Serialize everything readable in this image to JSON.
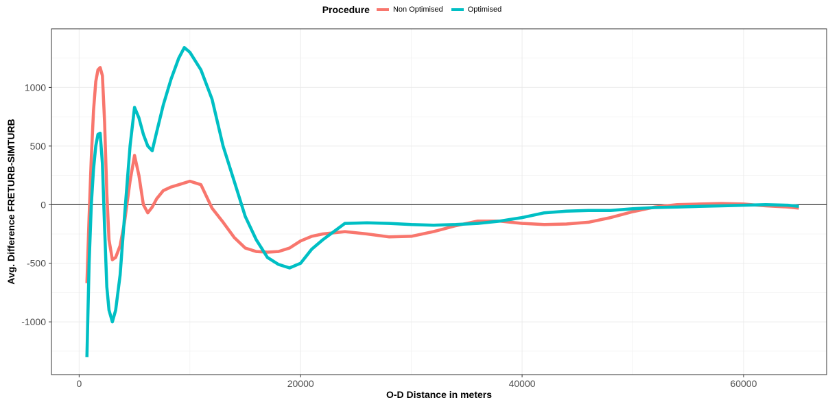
{
  "chart_data": {
    "type": "line",
    "title": "",
    "xlabel": "O-D Distance in meters",
    "ylabel": "Avg. Difference FRETURB-SIMTURB",
    "xlim": [
      -2500,
      67500
    ],
    "ylim": [
      -1450,
      1500
    ],
    "x_ticks": [
      0,
      20000,
      40000,
      60000
    ],
    "x_tick_labels": [
      "0",
      "20000",
      "40000",
      "60000"
    ],
    "y_ticks": [
      1000,
      500,
      0,
      -500,
      -1000
    ],
    "y_tick_labels": [
      "1000",
      "500",
      "0",
      "-500",
      "-1000"
    ],
    "reference_line_y": 0,
    "grid": true,
    "legend": {
      "title": "Procedure",
      "position": "top"
    },
    "series": [
      {
        "name": "Non Optimised",
        "color": "#F8766D",
        "x": [
          700,
          900,
          1100,
          1300,
          1500,
          1700,
          1900,
          2100,
          2300,
          2500,
          2700,
          3000,
          3300,
          3700,
          4100,
          4600,
          5000,
          5400,
          5800,
          6200,
          6600,
          7000,
          7600,
          8300,
          9000,
          10000,
          11000,
          12000,
          13000,
          14000,
          15000,
          16000,
          17000,
          18000,
          19000,
          20000,
          21000,
          22000,
          24000,
          26000,
          28000,
          30000,
          32000,
          34000,
          36000,
          38000,
          40000,
          42000,
          44000,
          46000,
          48000,
          50000,
          52000,
          54000,
          56000,
          58000,
          60000,
          62000,
          64000,
          65000
        ],
        "values": [
          -670,
          -100,
          400,
          800,
          1050,
          1150,
          1170,
          1100,
          700,
          100,
          -300,
          -470,
          -450,
          -350,
          -150,
          200,
          420,
          250,
          0,
          -70,
          -20,
          50,
          120,
          150,
          170,
          200,
          170,
          -30,
          -150,
          -280,
          -370,
          -400,
          -405,
          -400,
          -370,
          -310,
          -270,
          -250,
          -230,
          -250,
          -275,
          -270,
          -230,
          -180,
          -140,
          -140,
          -160,
          -170,
          -165,
          -150,
          -110,
          -60,
          -20,
          0,
          5,
          10,
          5,
          -10,
          -20,
          -30
        ]
      },
      {
        "name": "Optimised",
        "color": "#00BFC4",
        "x": [
          700,
          900,
          1100,
          1300,
          1500,
          1700,
          1900,
          2100,
          2300,
          2500,
          2700,
          3000,
          3300,
          3700,
          4100,
          4600,
          5000,
          5400,
          5800,
          6200,
          6600,
          7000,
          7600,
          8300,
          9000,
          9500,
          10000,
          11000,
          12000,
          13000,
          14000,
          15000,
          16000,
          17000,
          18000,
          19000,
          20000,
          21000,
          22000,
          24000,
          26000,
          28000,
          30000,
          32000,
          34000,
          36000,
          38000,
          40000,
          42000,
          44000,
          46000,
          48000,
          50000,
          52000,
          54000,
          56000,
          58000,
          60000,
          62000,
          64000,
          65000
        ],
        "values": [
          -1300,
          -500,
          0,
          300,
          500,
          600,
          610,
          350,
          -200,
          -700,
          -900,
          -1000,
          -900,
          -600,
          -100,
          500,
          830,
          740,
          600,
          500,
          460,
          620,
          850,
          1070,
          1250,
          1340,
          1300,
          1150,
          900,
          500,
          200,
          -100,
          -300,
          -450,
          -510,
          -540,
          -500,
          -380,
          -300,
          -160,
          -155,
          -160,
          -170,
          -175,
          -170,
          -160,
          -140,
          -110,
          -70,
          -55,
          -50,
          -50,
          -35,
          -25,
          -20,
          -15,
          -10,
          -5,
          0,
          -5,
          -15
        ]
      }
    ]
  }
}
